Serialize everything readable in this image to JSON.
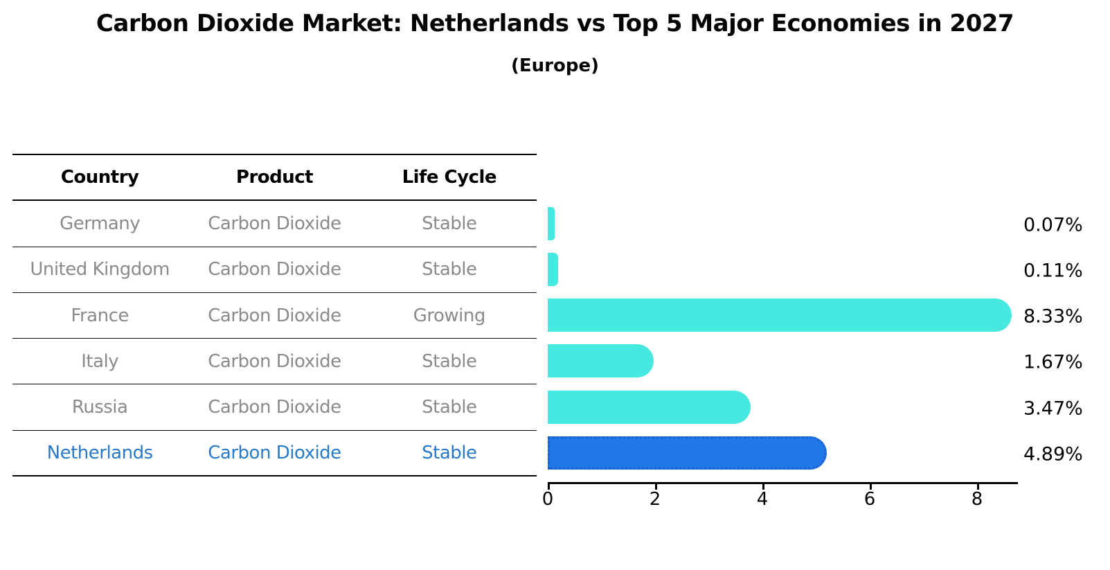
{
  "title": "Carbon Dioxide Market: Netherlands vs Top 5 Major Economies in 2027",
  "subtitle": "(Europe)",
  "table": {
    "headers": [
      "Country",
      "Product",
      "Life Cycle"
    ],
    "rows": [
      {
        "country": "Germany",
        "product": "Carbon Dioxide",
        "life_cycle": "Stable",
        "value_label": "0.07%",
        "highlight": false
      },
      {
        "country": "United Kingdom",
        "product": "Carbon Dioxide",
        "life_cycle": "Stable",
        "value_label": "0.11%",
        "highlight": false
      },
      {
        "country": "France",
        "product": "Carbon Dioxide",
        "life_cycle": "Growing",
        "value_label": "8.33%",
        "highlight": false
      },
      {
        "country": "Italy",
        "product": "Carbon Dioxide",
        "life_cycle": "Stable",
        "value_label": "1.67%",
        "highlight": false
      },
      {
        "country": "Russia",
        "product": "Carbon Dioxide",
        "life_cycle": "Stable",
        "value_label": "3.47%",
        "highlight": false
      },
      {
        "country": "Netherlands",
        "product": "Carbon Dioxide",
        "life_cycle": "Stable",
        "value_label": "4.89%",
        "highlight": true
      }
    ]
  },
  "chart_data": {
    "type": "bar",
    "orientation": "horizontal",
    "title": "Carbon Dioxide Market: Netherlands vs Top 5 Major Economies in 2027",
    "subtitle": "(Europe)",
    "categories": [
      "Germany",
      "United Kingdom",
      "France",
      "Italy",
      "Russia",
      "Netherlands"
    ],
    "values": [
      0.07,
      0.11,
      8.33,
      1.67,
      3.47,
      4.89
    ],
    "data_labels": [
      "0.07%",
      "0.11%",
      "8.33%",
      "1.67%",
      "3.47%",
      "4.89%"
    ],
    "xlabel": "",
    "ylabel": "",
    "xlim": [
      0,
      8.75
    ],
    "xticks": [
      0,
      2,
      4,
      6,
      8
    ],
    "grid": false,
    "legend": false,
    "bar_color_default": "#46e8e0",
    "bar_color_highlight": "#2176e8",
    "highlight_index": 5,
    "highlight_text_color": "#2879c9"
  }
}
